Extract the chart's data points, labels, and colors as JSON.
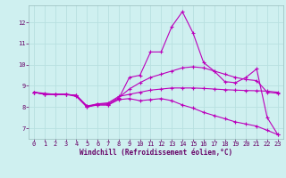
{
  "xlabel": "Windchill (Refroidissement éolien,°C)",
  "bg_color": "#cff0f0",
  "grid_color": "#b8e0e0",
  "line_color": "#bb00bb",
  "ylim": [
    6.5,
    12.8
  ],
  "xlim": [
    -0.5,
    23.5
  ],
  "xticks": [
    0,
    1,
    2,
    3,
    4,
    5,
    6,
    7,
    8,
    9,
    10,
    11,
    12,
    13,
    14,
    15,
    16,
    17,
    18,
    19,
    20,
    21,
    22,
    23
  ],
  "yticks": [
    7,
    8,
    9,
    10,
    11,
    12
  ],
  "hours": [
    0,
    1,
    2,
    3,
    4,
    5,
    6,
    7,
    8,
    9,
    10,
    11,
    12,
    13,
    14,
    15,
    16,
    17,
    18,
    19,
    20,
    21,
    22,
    23
  ],
  "line1": [
    8.7,
    8.6,
    8.6,
    8.6,
    8.5,
    8.0,
    8.1,
    8.1,
    8.4,
    9.4,
    9.5,
    10.6,
    10.6,
    11.8,
    12.5,
    11.5,
    10.1,
    9.7,
    9.2,
    9.15,
    9.4,
    9.8,
    7.5,
    6.7
  ],
  "line2": [
    8.7,
    8.6,
    8.6,
    8.6,
    8.55,
    8.0,
    8.15,
    8.15,
    8.45,
    8.85,
    9.15,
    9.4,
    9.55,
    9.7,
    9.85,
    9.9,
    9.85,
    9.7,
    9.55,
    9.4,
    9.3,
    9.25,
    8.7,
    8.65
  ],
  "line3": [
    8.7,
    8.6,
    8.6,
    8.6,
    8.55,
    8.05,
    8.15,
    8.2,
    8.5,
    8.6,
    8.7,
    8.8,
    8.85,
    8.9,
    8.9,
    8.9,
    8.88,
    8.85,
    8.82,
    8.8,
    8.78,
    8.77,
    8.75,
    8.7
  ],
  "line4": [
    8.7,
    8.65,
    8.6,
    8.6,
    8.55,
    8.05,
    8.1,
    8.1,
    8.35,
    8.4,
    8.3,
    8.35,
    8.4,
    8.3,
    8.1,
    7.95,
    7.75,
    7.6,
    7.45,
    7.3,
    7.2,
    7.1,
    6.9,
    6.7
  ],
  "tick_fontsize": 5.0,
  "xlabel_fontsize": 5.5,
  "marker_size": 3.0,
  "linewidth": 0.8
}
